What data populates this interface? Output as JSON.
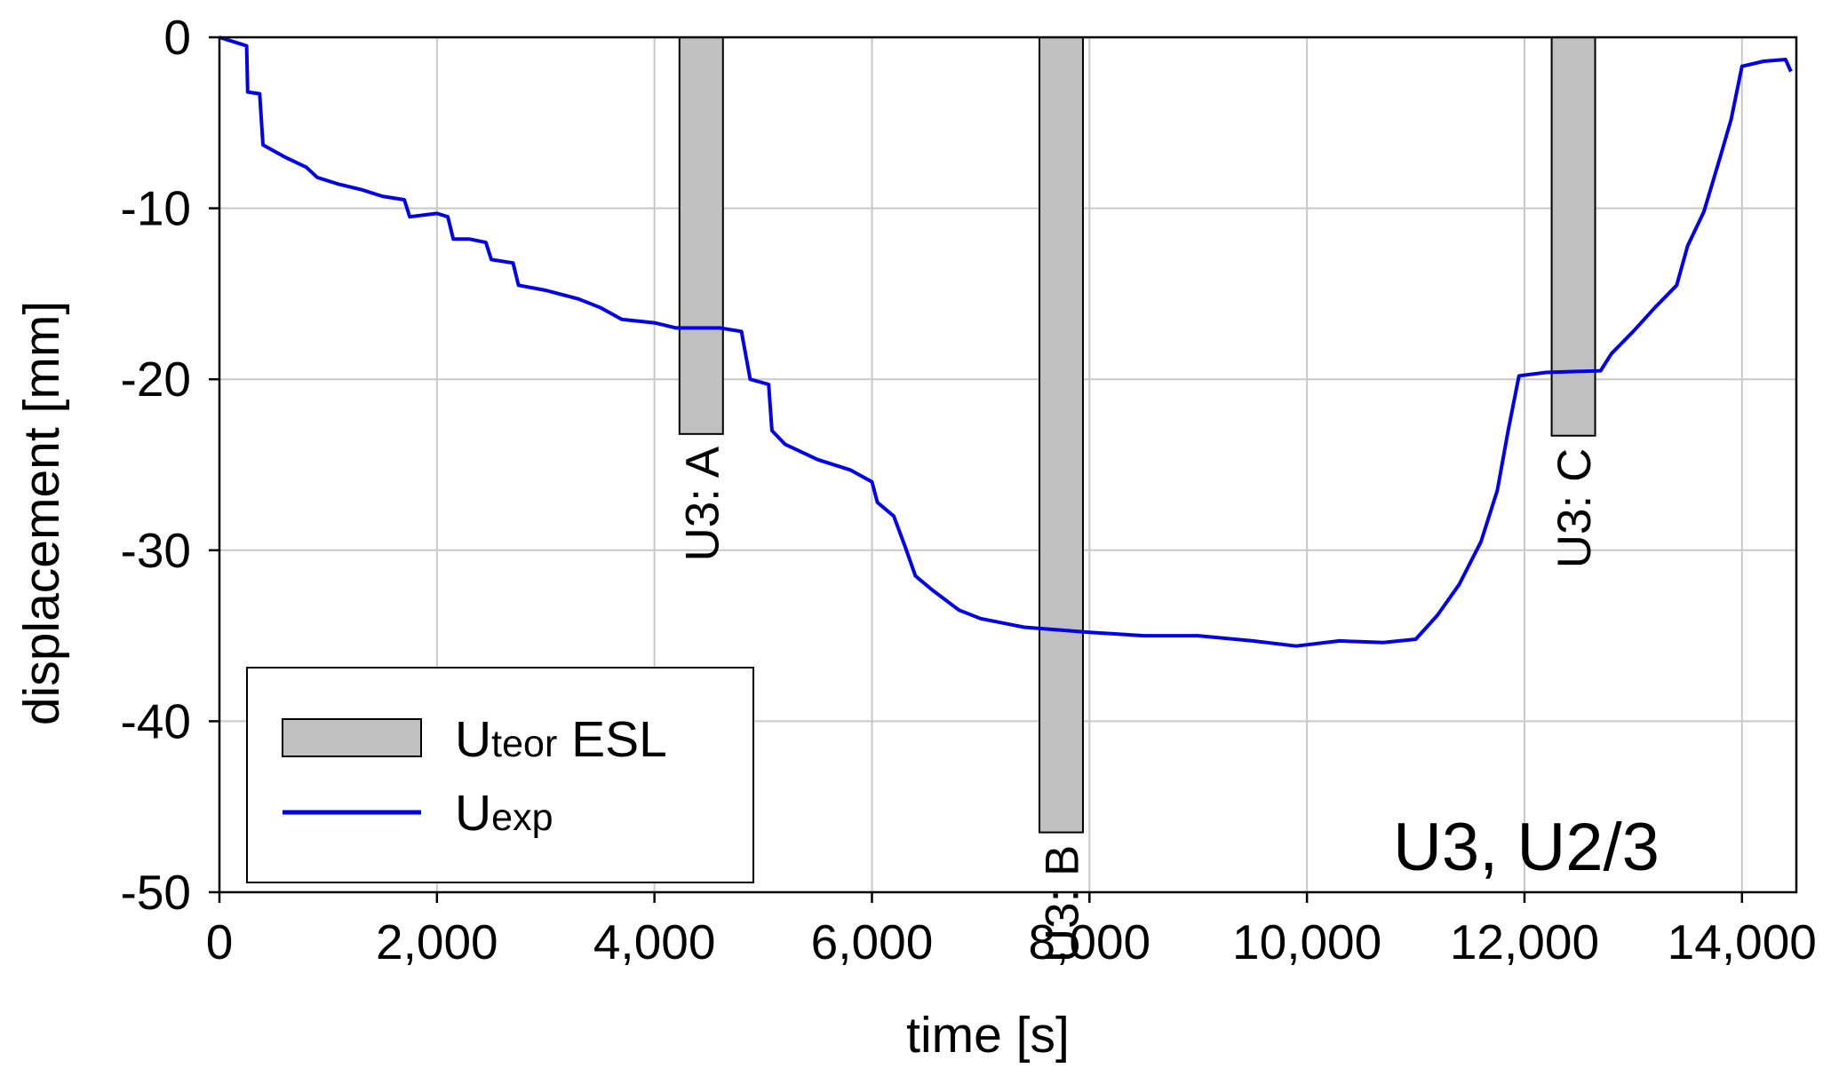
{
  "chart_data": {
    "type": "bar+line",
    "title": "",
    "xlabel": "time [s]",
    "ylabel": "displacement [mm]",
    "xlim": [
      0,
      14500
    ],
    "ylim": [
      -50,
      0
    ],
    "xticks": [
      0,
      2000,
      4000,
      6000,
      8000,
      10000,
      12000,
      14000
    ],
    "xtick_labels": [
      "0",
      "2,000",
      "4,000",
      "6,000",
      "8,000",
      "10,000",
      "12,000",
      "14,000"
    ],
    "yticks": [
      0,
      -10,
      -20,
      -30,
      -40,
      -50
    ],
    "ytick_labels": [
      "0",
      "-10",
      "-20",
      "-30",
      "-40",
      "-50"
    ],
    "grid": true,
    "annotation": "U3, U2/3",
    "legend": {
      "placement": "bottom-left",
      "entries": [
        {
          "main": "U",
          "sub": "teor",
          "suffix": " ESL",
          "kind": "bar",
          "color": "#c0c0c0"
        },
        {
          "main": "U",
          "sub": "exp",
          "suffix": "",
          "kind": "line",
          "color": "#0000ee"
        }
      ]
    },
    "bars": [
      {
        "label": "U3: A",
        "x_center": 4430,
        "width": 400,
        "value": -23.2,
        "color": "#c0c0c0"
      },
      {
        "label": "U3: B",
        "x_center": 7740,
        "width": 400,
        "value": -46.5,
        "color": "#c0c0c0"
      },
      {
        "label": "U3: C",
        "x_center": 12450,
        "width": 400,
        "value": -23.3,
        "color": "#c0c0c0"
      }
    ],
    "series": [
      {
        "name": "U exp",
        "color": "#0000ee",
        "points": [
          [
            0,
            0
          ],
          [
            100,
            -0.2
          ],
          [
            200,
            -0.4
          ],
          [
            250,
            -0.5
          ],
          [
            260,
            -3.2
          ],
          [
            370,
            -3.3
          ],
          [
            400,
            -6.3
          ],
          [
            600,
            -7.0
          ],
          [
            800,
            -7.6
          ],
          [
            900,
            -8.2
          ],
          [
            1100,
            -8.6
          ],
          [
            1300,
            -8.9
          ],
          [
            1500,
            -9.3
          ],
          [
            1700,
            -9.5
          ],
          [
            1750,
            -10.5
          ],
          [
            2000,
            -10.3
          ],
          [
            2100,
            -10.5
          ],
          [
            2150,
            -11.8
          ],
          [
            2300,
            -11.8
          ],
          [
            2450,
            -12.0
          ],
          [
            2500,
            -13.0
          ],
          [
            2700,
            -13.2
          ],
          [
            2750,
            -14.5
          ],
          [
            3000,
            -14.8
          ],
          [
            3300,
            -15.3
          ],
          [
            3500,
            -15.8
          ],
          [
            3700,
            -16.5
          ],
          [
            4000,
            -16.7
          ],
          [
            4200,
            -17.0
          ],
          [
            4600,
            -17.0
          ],
          [
            4800,
            -17.2
          ],
          [
            4880,
            -20.0
          ],
          [
            5050,
            -20.3
          ],
          [
            5080,
            -23.0
          ],
          [
            5200,
            -23.8
          ],
          [
            5500,
            -24.7
          ],
          [
            5800,
            -25.3
          ],
          [
            6000,
            -26.0
          ],
          [
            6050,
            -27.2
          ],
          [
            6200,
            -28.0
          ],
          [
            6300,
            -29.7
          ],
          [
            6400,
            -31.5
          ],
          [
            6550,
            -32.3
          ],
          [
            6800,
            -33.5
          ],
          [
            7000,
            -34.0
          ],
          [
            7400,
            -34.5
          ],
          [
            8000,
            -34.8
          ],
          [
            8500,
            -35.0
          ],
          [
            9000,
            -35.0
          ],
          [
            9500,
            -35.3
          ],
          [
            9900,
            -35.6
          ],
          [
            10300,
            -35.3
          ],
          [
            10700,
            -35.4
          ],
          [
            11000,
            -35.2
          ],
          [
            11200,
            -33.8
          ],
          [
            11400,
            -32.0
          ],
          [
            11600,
            -29.5
          ],
          [
            11750,
            -26.5
          ],
          [
            11850,
            -23.0
          ],
          [
            11950,
            -19.8
          ],
          [
            12200,
            -19.6
          ],
          [
            12700,
            -19.5
          ],
          [
            12800,
            -18.5
          ],
          [
            13000,
            -17.2
          ],
          [
            13200,
            -15.8
          ],
          [
            13400,
            -14.5
          ],
          [
            13500,
            -12.2
          ],
          [
            13650,
            -10.2
          ],
          [
            13800,
            -7.0
          ],
          [
            13900,
            -4.8
          ],
          [
            14000,
            -1.7
          ],
          [
            14200,
            -1.4
          ],
          [
            14400,
            -1.3
          ],
          [
            14450,
            -2.0
          ]
        ]
      }
    ]
  }
}
